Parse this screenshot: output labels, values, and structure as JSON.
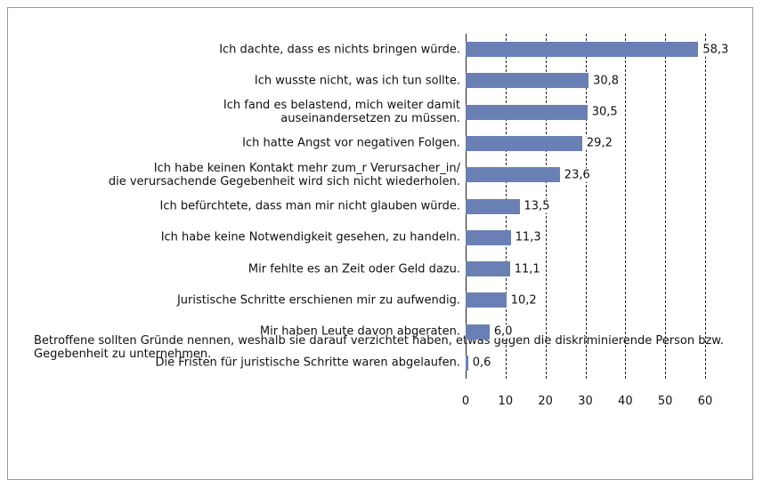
{
  "chart_data": {
    "type": "bar",
    "orientation": "horizontal",
    "categories": [
      "Ich dachte, dass es nichts bringen würde.",
      "Ich wusste nicht, was ich tun sollte.",
      "Ich fand es belastend, mich weiter damit\nauseinandersetzen zu müssen.",
      "Ich hatte Angst vor negativen Folgen.",
      "Ich habe keinen Kontakt mehr zum_r Verursacher_in/\ndie verursachende Gegebenheit wird sich nicht wiederholen.",
      "Ich befürchtete, dass man mir nicht glauben würde.",
      "Ich habe keine Notwendigkeit gesehen, zu handeln.",
      "Mir fehlte es an Zeit oder Geld dazu.",
      "Juristische Schritte erschienen mir zu aufwendig.",
      "Mir haben Leute davon abgeraten.",
      "Die Fristen für juristische Schritte waren abgelaufen."
    ],
    "values": [
      58.3,
      30.8,
      30.5,
      29.2,
      23.6,
      13.5,
      11.3,
      11.1,
      10.2,
      6.0,
      0.6
    ],
    "value_labels": [
      "58,3",
      "30,8",
      "30,5",
      "29,2",
      "23,6",
      "13,5",
      "11,3",
      "11,1",
      "10,2",
      "6,0",
      "0,6"
    ],
    "color": "#6a80b5",
    "xlim": [
      0,
      60
    ],
    "xticks": [
      0,
      10,
      20,
      30,
      40,
      50,
      60
    ],
    "grid": true,
    "note": "Betroffene sollten Gründe nennen, weshalb sie darauf verzichtet haben, etwas gegen die diskriminierende Person bzw. Gegebenheit zu unternehmen."
  }
}
